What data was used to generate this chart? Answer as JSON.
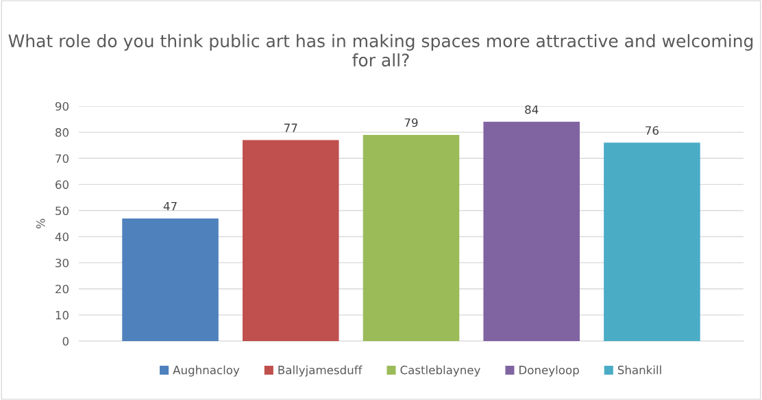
{
  "chart_data": {
    "type": "bar",
    "title": "What role do you think public art has in making spaces more attractive and welcoming for all?",
    "ylabel": "%",
    "categories": [
      null
    ],
    "series": [
      {
        "name": "Aughnacloy",
        "color": "#4f81bd",
        "values": [
          47
        ]
      },
      {
        "name": "Ballyjamesduff",
        "color": "#c0504d",
        "values": [
          77
        ]
      },
      {
        "name": "Castleblayney",
        "color": "#9bbb59",
        "values": [
          79
        ]
      },
      {
        "name": "Doneyloop",
        "color": "#8064a2",
        "values": [
          84
        ]
      },
      {
        "name": "Shankill",
        "color": "#4bacc6",
        "values": [
          76
        ]
      }
    ],
    "ylim": [
      0,
      90
    ],
    "yticks": [
      0,
      10,
      20,
      30,
      40,
      50,
      60,
      70,
      80,
      90
    ],
    "grid": "y",
    "legend": "bottom",
    "data_labels": true
  }
}
